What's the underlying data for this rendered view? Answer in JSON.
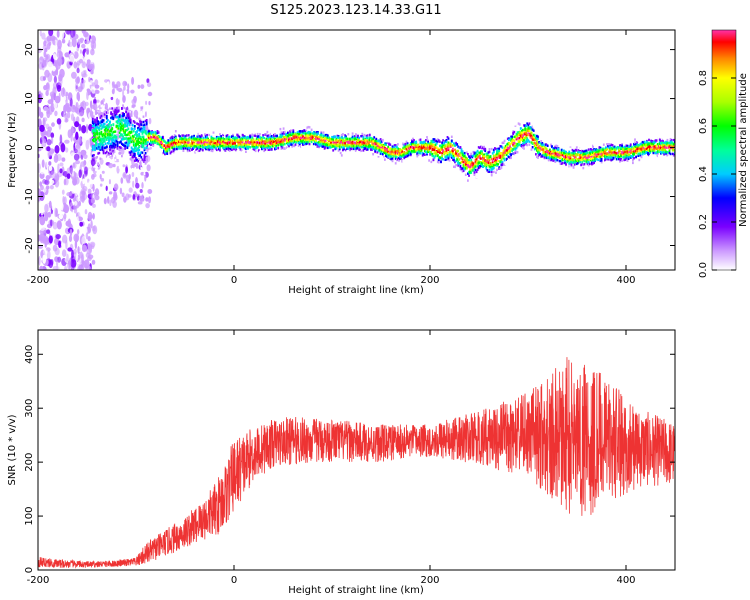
{
  "title": "S125.2023.123.14.33.G11",
  "chart_data": [
    {
      "type": "heatmap",
      "xlabel": "Height of straight line (km)",
      "ylabel": "Frequency (Hz)",
      "xlim": [
        -200,
        450
      ],
      "ylim": [
        -25,
        24
      ],
      "xticks": [
        -200,
        0,
        200,
        400
      ],
      "yticks": [
        -20,
        -10,
        0,
        10,
        20
      ],
      "colorbar": {
        "label": "Normalized spectral amplitude",
        "range": [
          0.0,
          1.0
        ],
        "ticks": [
          0.0,
          0.2,
          0.4,
          0.6,
          0.8
        ]
      },
      "ridge": {
        "x": [
          -145,
          -130,
          -115,
          -100,
          -90,
          -80,
          -70,
          -60,
          -50,
          -40,
          -30,
          -20,
          -10,
          0,
          20,
          40,
          60,
          80,
          100,
          120,
          140,
          150,
          160,
          170,
          180,
          190,
          200,
          210,
          220,
          230,
          240,
          250,
          260,
          270,
          280,
          290,
          300,
          310,
          320,
          340,
          360,
          380,
          400,
          420,
          440,
          450
        ],
        "y": [
          2,
          3,
          4,
          1,
          2,
          2,
          0,
          1,
          1,
          1,
          1,
          1,
          1,
          1,
          1,
          1,
          2,
          2,
          1,
          1,
          1,
          0,
          -1,
          -1,
          0,
          0,
          0,
          -1,
          0,
          -2,
          -4,
          -2,
          -3,
          -2,
          0,
          2,
          3,
          0,
          -1,
          -2,
          -2,
          -1,
          -1,
          0,
          0,
          0
        ]
      },
      "noise_region_x": [
        -200,
        -142
      ]
    },
    {
      "type": "line",
      "xlabel": "Height of straight line (km)",
      "ylabel": "SNR (10 * v/v)",
      "xlim": [
        -200,
        450
      ],
      "ylim": [
        0,
        445
      ],
      "xticks": [
        -200,
        0,
        200,
        400
      ],
      "yticks": [
        0,
        100,
        200,
        300,
        400
      ],
      "color": "#ee3333",
      "envelope": {
        "x": [
          -200,
          -180,
          -150,
          -120,
          -100,
          -90,
          -70,
          -50,
          -30,
          -20,
          -10,
          0,
          20,
          40,
          60,
          100,
          150,
          200,
          250,
          300,
          320,
          340,
          360,
          380,
          400,
          420,
          450
        ],
        "mean": [
          15,
          12,
          10,
          12,
          15,
          30,
          50,
          70,
          95,
          110,
          135,
          175,
          215,
          235,
          240,
          240,
          235,
          240,
          245,
          250,
          250,
          250,
          245,
          240,
          230,
          225,
          215
        ],
        "amp": [
          10,
          8,
          6,
          6,
          8,
          20,
          25,
          30,
          40,
          50,
          60,
          70,
          50,
          45,
          45,
          40,
          35,
          30,
          50,
          80,
          110,
          150,
          150,
          120,
          90,
          70,
          60
        ]
      }
    }
  ]
}
